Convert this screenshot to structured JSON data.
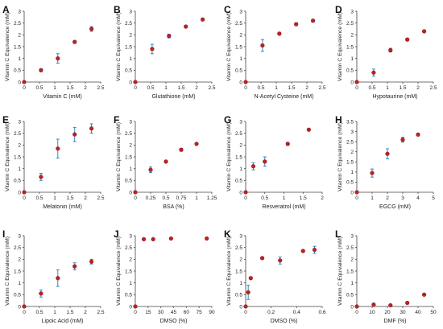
{
  "figure": {
    "background": "#ffffff",
    "marker_color": "#c0201e",
    "error_color": "#2a7ab8"
  },
  "chart_data": [
    {
      "panel": "A",
      "type": "scatter",
      "xlabel": "Vitamin C (mM)",
      "ylabel": "Vitamin C Equivalence (mM)",
      "xlim": [
        0,
        2.5
      ],
      "ylim": [
        0,
        3
      ],
      "xticks": [
        "0",
        "0.5",
        "1",
        "1.5",
        "2",
        "2.5"
      ],
      "yticks": [
        "0",
        "0.5",
        "1",
        "1.5",
        "2",
        "2.5",
        "3"
      ],
      "x": [
        0,
        0.55,
        1.1,
        1.65,
        2.2
      ],
      "y": [
        0,
        0.5,
        1.0,
        1.7,
        2.25
      ],
      "err": [
        0,
        0.06,
        0.2,
        0.06,
        0.1
      ]
    },
    {
      "panel": "B",
      "type": "scatter",
      "xlabel": "Glutathione (mM)",
      "ylabel": "Vitamin C Equivalence (mM)",
      "xlim": [
        0,
        2.5
      ],
      "ylim": [
        0,
        3
      ],
      "xticks": [
        "0",
        "0.5",
        "1",
        "1.5",
        "2",
        "2.5"
      ],
      "yticks": [
        "0",
        "0.5",
        "1",
        "1.5",
        "2",
        "2.5",
        "3"
      ],
      "x": [
        0,
        0.55,
        1.1,
        1.65,
        2.2
      ],
      "y": [
        0,
        1.4,
        1.95,
        2.35,
        2.65
      ],
      "err": [
        0,
        0.2,
        0.08,
        0.05,
        0.05
      ]
    },
    {
      "panel": "C",
      "type": "scatter",
      "xlabel": "N-Acetyl Cysteine (mM)",
      "ylabel": "Vitamin C Equivalence (mM)",
      "xlim": [
        0,
        2.5
      ],
      "ylim": [
        0,
        3
      ],
      "xticks": [
        "0",
        "0.5",
        "1",
        "1.5",
        "2",
        "2.5"
      ],
      "yticks": [
        "0",
        "0.5",
        "1",
        "1.5",
        "2",
        "2.5",
        "3"
      ],
      "x": [
        0,
        0.55,
        1.1,
        1.65,
        2.2
      ],
      "y": [
        0,
        1.55,
        2.05,
        2.45,
        2.6
      ],
      "err": [
        0,
        0.25,
        0.06,
        0.06,
        0.06
      ]
    },
    {
      "panel": "D",
      "type": "scatter",
      "xlabel": "Hypotaurine (mM)",
      "ylabel": "Vitamin C Equivalence (mM)",
      "xlim": [
        0,
        2.5
      ],
      "ylim": [
        0,
        3
      ],
      "xticks": [
        "0",
        "0.5",
        "1",
        "1.5",
        "2",
        "2.5"
      ],
      "yticks": [
        "0",
        "0.5",
        "1",
        "1.5",
        "2",
        "2.5",
        "3"
      ],
      "x": [
        0,
        0.55,
        1.1,
        1.65,
        2.2
      ],
      "y": [
        0,
        0.4,
        1.35,
        1.8,
        2.15
      ],
      "err": [
        0,
        0.15,
        0.08,
        0.05,
        0.05
      ]
    },
    {
      "panel": "E",
      "type": "scatter",
      "xlabel": "Melatonin (mM)",
      "ylabel": "Vitamin C Equivalence (mM)",
      "xlim": [
        0,
        2.5
      ],
      "ylim": [
        0,
        3
      ],
      "xticks": [
        "0",
        "0.5",
        "1",
        "1.5",
        "2",
        "2.5"
      ],
      "yticks": [
        "0",
        "0.5",
        "1",
        "1.5",
        "2",
        "2.5",
        "3"
      ],
      "x": [
        0,
        0.55,
        1.1,
        1.65,
        2.2
      ],
      "y": [
        0,
        0.65,
        1.85,
        2.45,
        2.7
      ],
      "err": [
        0,
        0.15,
        0.4,
        0.3,
        0.2
      ]
    },
    {
      "panel": "F",
      "type": "scatter",
      "xlabel": "BSA (%)",
      "ylabel": "Vitamin C Equivalence (mM)",
      "xlim": [
        0,
        1.25
      ],
      "ylim": [
        0,
        3
      ],
      "xticks": [
        "0",
        "0.25",
        "0.5",
        "0.75",
        "1",
        "1.25"
      ],
      "yticks": [
        "0",
        "0.5",
        "1",
        "1.5",
        "2",
        "2.5",
        "3"
      ],
      "x": [
        0,
        0.25,
        0.5,
        0.75,
        1.0
      ],
      "y": [
        0,
        0.95,
        1.3,
        1.8,
        2.05
      ],
      "err": [
        0,
        0.12,
        0.05,
        0.06,
        0.04
      ]
    },
    {
      "panel": "G",
      "type": "scatter",
      "xlabel": "Resveratrol (mM)",
      "ylabel": "Vitamin C Equivalence (mM)",
      "xlim": [
        0,
        2
      ],
      "ylim": [
        0,
        3
      ],
      "xticks": [
        "0",
        "0.5",
        "1",
        "1.5",
        "2"
      ],
      "yticks": [
        "0",
        "0.5",
        "1",
        "1.5",
        "2",
        "2.5",
        "3"
      ],
      "x": [
        0,
        0.2,
        0.5,
        1.1,
        1.65
      ],
      "y": [
        0,
        1.1,
        1.3,
        2.05,
        2.65
      ],
      "err": [
        0,
        0.15,
        0.2,
        0.06,
        0.05
      ]
    },
    {
      "panel": "H",
      "type": "scatter",
      "xlabel": "EGCG (mM)",
      "ylabel": "Vitamin C Equivalence (mM)",
      "xlim": [
        0,
        5
      ],
      "ylim": [
        0,
        3.5
      ],
      "xticks": [
        "0",
        "1",
        "2",
        "3",
        "4",
        "5"
      ],
      "yticks": [
        "0",
        "0.5",
        "1",
        "1.5",
        "2",
        "2.5",
        "3",
        "3.5"
      ],
      "x": [
        0,
        1,
        2,
        3,
        4
      ],
      "y": [
        0,
        0.95,
        1.9,
        2.6,
        2.85
      ],
      "err": [
        0,
        0.2,
        0.25,
        0.12,
        0.06
      ]
    },
    {
      "panel": "I",
      "type": "scatter",
      "xlabel": "Lipoic Acid (mM)",
      "ylabel": "Vitamin C Equivalence (mM)",
      "xlim": [
        0,
        2.5
      ],
      "ylim": [
        0,
        3
      ],
      "xticks": [
        "0",
        "0.5",
        "1",
        "1.5",
        "2",
        "2.5"
      ],
      "yticks": [
        "0",
        "0.5",
        "1",
        "1.5",
        "2",
        "2.5",
        "3"
      ],
      "x": [
        0,
        0.55,
        1.1,
        1.65,
        2.2
      ],
      "y": [
        0,
        0.55,
        1.2,
        1.7,
        1.9
      ],
      "err": [
        0,
        0.15,
        0.35,
        0.15,
        0.1
      ]
    },
    {
      "panel": "J",
      "type": "scatter",
      "xlabel": "DMSO (%)",
      "ylabel": "Vitamin C Equivalence (mM)",
      "xlim": [
        0,
        90
      ],
      "ylim": [
        0,
        3
      ],
      "xticks": [
        "0",
        "15",
        "30",
        "45",
        "60",
        "75",
        "90"
      ],
      "yticks": [
        "0",
        "0.5",
        "1",
        "1.5",
        "2",
        "2.5",
        "3"
      ],
      "x": [
        0,
        10,
        21,
        42,
        84
      ],
      "y": [
        0,
        2.85,
        2.85,
        2.88,
        2.88
      ],
      "err": [
        0,
        0.03,
        0.03,
        0.03,
        0.03
      ]
    },
    {
      "panel": "K",
      "type": "scatter",
      "xlabel": "DMSO (%)",
      "ylabel": "Vitamin C Equivalence (mM)",
      "xlim": [
        0,
        0.6
      ],
      "ylim": [
        0,
        3
      ],
      "xticks": [
        "0",
        "0.2",
        "0.4",
        "0.6"
      ],
      "yticks": [
        "0",
        "0.5",
        "1",
        "1.5",
        "2",
        "2.5",
        "3"
      ],
      "x": [
        0,
        0.02,
        0.04,
        0.13,
        0.27,
        0.45,
        0.54
      ],
      "y": [
        0,
        0.6,
        1.2,
        2.05,
        1.95,
        2.35,
        2.4
      ],
      "err": [
        0,
        0.3,
        0.05,
        0.05,
        0.15,
        0.05,
        0.15
      ]
    },
    {
      "panel": "L",
      "type": "scatter",
      "xlabel": "DMF (%)",
      "ylabel": "Vitamin C Equivalence (mM)",
      "xlim": [
        0,
        50
      ],
      "ylim": [
        0,
        3
      ],
      "xticks": [
        "0",
        "10",
        "20",
        "30",
        "40",
        "50"
      ],
      "yticks": [
        "0",
        "0.5",
        "1",
        "1.5",
        "2",
        "2.5",
        "3"
      ],
      "x": [
        0,
        11,
        22,
        33,
        44
      ],
      "y": [
        0,
        0.08,
        0.05,
        0.15,
        0.5
      ],
      "err": [
        0,
        0.02,
        0.02,
        0.05,
        0.04
      ]
    }
  ]
}
